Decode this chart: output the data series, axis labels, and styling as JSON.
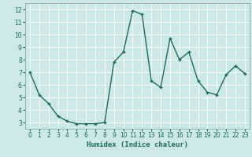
{
  "x": [
    0,
    1,
    2,
    3,
    4,
    5,
    6,
    7,
    8,
    9,
    10,
    11,
    12,
    13,
    14,
    15,
    16,
    17,
    18,
    19,
    20,
    21,
    22,
    23
  ],
  "y": [
    7.0,
    5.2,
    4.5,
    3.5,
    3.1,
    2.9,
    2.9,
    2.9,
    3.0,
    7.8,
    8.6,
    11.9,
    11.6,
    6.3,
    5.8,
    9.7,
    8.0,
    8.6,
    6.3,
    5.4,
    5.2,
    6.8,
    7.5,
    6.9
  ],
  "line_color": "#1a6b5e",
  "marker": "+",
  "markersize": 3,
  "linewidth": 1.0,
  "markeredgewidth": 1.0,
  "xlabel": "Humidex (Indice chaleur)",
  "xlim": [
    -0.5,
    23.5
  ],
  "ylim": [
    2.5,
    12.5
  ],
  "yticks": [
    3,
    4,
    5,
    6,
    7,
    8,
    9,
    10,
    11,
    12
  ],
  "xticks": [
    0,
    1,
    2,
    3,
    4,
    5,
    6,
    7,
    8,
    9,
    10,
    11,
    12,
    13,
    14,
    15,
    16,
    17,
    18,
    19,
    20,
    21,
    22,
    23
  ],
  "bg_color": "#cce9e5",
  "grid_color": "#ffffff",
  "grid_linewidth": 0.6,
  "tick_labelsize": 5.5,
  "xlabel_fontsize": 6.5,
  "spine_color": "#7a9e99"
}
